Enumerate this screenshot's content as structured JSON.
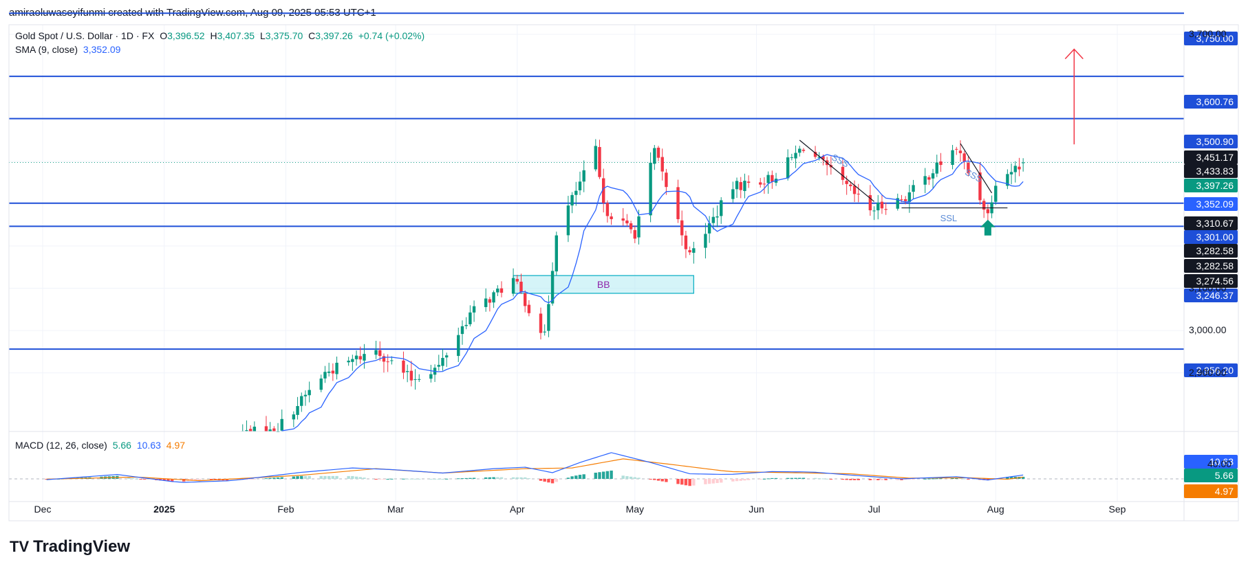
{
  "header": {
    "credit": "amiraoluwaseyifunmi created with TradingView.com, Aug 09, 2025 05:53 UTC+1"
  },
  "legend": {
    "symbol": "Gold Spot / U.S. Dollar · 1D · FX",
    "o_label": "O",
    "o_value": "3,396.52",
    "h_label": "H",
    "h_value": "3,407.35",
    "l_label": "L",
    "l_value": "3,375.70",
    "c_label": "C",
    "c_value": "3,397.26",
    "change": "+0.74 (+0.02%)",
    "sma_label": "SMA (9, close)",
    "sma_value": "3,352.09",
    "macd_label": "MACD (12, 26, close)",
    "macd_v1": "5.66",
    "macd_v2": "10.63",
    "macd_v3": "4.97"
  },
  "colors": {
    "up": "#089981",
    "down": "#f23645",
    "sma": "#2962ff",
    "level": "#1e4fd8",
    "macd": "#2962ff",
    "signal": "#f57c00",
    "hist_up": "#26a69a",
    "hist_up_weak": "#b2dfdb",
    "hist_down": "#ff5252",
    "hist_down_weak": "#ffcdd2",
    "bb_fill": "#b2ebf2",
    "bb_stroke": "#00acc1",
    "annot": "#5b8bd6",
    "arrow_red": "#f23645",
    "arrow_green": "#089981"
  },
  "logo": {
    "text": "TradingView",
    "mark": "TV"
  },
  "chart_data": [
    {
      "type": "candlestick",
      "title": "Gold Spot / U.S. Dollar · 1D · FX",
      "ylim": [
        2830,
        3780
      ],
      "yticks": [
        "3,700.00",
        "3,100.00",
        "3,000.00",
        "2,900.00"
      ],
      "ytick_values": [
        3700,
        3100,
        3000,
        2900
      ],
      "xticks": [
        {
          "label": "Dec",
          "date": "2024-12-01"
        },
        {
          "label": "2025",
          "date": "2025-01-01"
        },
        {
          "label": "Feb",
          "date": "2025-02-01"
        },
        {
          "label": "Mar",
          "date": "2025-03-01"
        },
        {
          "label": "Apr",
          "date": "2025-04-01"
        },
        {
          "label": "May",
          "date": "2025-05-01"
        },
        {
          "label": "Jun",
          "date": "2025-06-01"
        },
        {
          "label": "Jul",
          "date": "2025-07-01"
        },
        {
          "label": "Aug",
          "date": "2025-08-01"
        },
        {
          "label": "Sep",
          "date": "2025-09-01"
        }
      ],
      "levels": [
        {
          "value": 3750.0,
          "label": "3,750.00"
        },
        {
          "value": 3600.76,
          "label": "3,600.76"
        },
        {
          "value": 3500.9,
          "label": "3,500.90"
        },
        {
          "value": 3301.0,
          "label": "3,301.00"
        },
        {
          "value": 3246.37,
          "label": "3,246.37"
        },
        {
          "value": 2956.2,
          "label": "2,956.20"
        }
      ],
      "price_labels": [
        {
          "value": 3451.17,
          "label": "3,451.17",
          "style": "dark"
        },
        {
          "value": 3433.83,
          "label": "3,433.83",
          "style": "dark"
        },
        {
          "value": 3397.26,
          "label": "3,397.26",
          "style": "green"
        },
        {
          "value": 3352.09,
          "label": "3,352.09",
          "style": "blue"
        },
        {
          "value": 3310.67,
          "label": "3,310.67",
          "style": "dark"
        },
        {
          "value": 3282.58,
          "label": "3,282.58",
          "style": "dark"
        },
        {
          "value": 3282.58,
          "label": "3,282.58",
          "style": "dark"
        },
        {
          "value": 3274.56,
          "label": "3,274.56",
          "style": "dark"
        }
      ],
      "anchors": [
        {
          "date": "2025-01-29",
          "close": 2760
        },
        {
          "date": "2025-02-11",
          "close": 2900
        },
        {
          "date": "2025-02-24",
          "close": 2955
        },
        {
          "date": "2025-03-05",
          "close": 2885
        },
        {
          "date": "2025-03-12",
          "close": 2915
        },
        {
          "date": "2025-03-20",
          "close": 3040
        },
        {
          "date": "2025-03-31",
          "close": 3120
        },
        {
          "date": "2025-04-08",
          "close": 2985
        },
        {
          "date": "2025-04-11",
          "close": 3235
        },
        {
          "date": "2025-04-21",
          "close": 3425
        },
        {
          "date": "2025-04-23",
          "close": 3290
        },
        {
          "date": "2025-05-01",
          "close": 3230
        },
        {
          "date": "2025-05-06",
          "close": 3425
        },
        {
          "date": "2025-05-15",
          "close": 3175
        },
        {
          "date": "2025-05-26",
          "close": 3340
        },
        {
          "date": "2025-06-05",
          "close": 3360
        },
        {
          "date": "2025-06-13",
          "close": 3435
        },
        {
          "date": "2025-06-25",
          "close": 3330
        },
        {
          "date": "2025-06-30",
          "close": 3285
        },
        {
          "date": "2025-07-09",
          "close": 3315
        },
        {
          "date": "2025-07-22",
          "close": 3432
        },
        {
          "date": "2025-07-30",
          "close": 3275
        },
        {
          "date": "2025-08-01",
          "close": 3355
        },
        {
          "date": "2025-08-08",
          "close": 3397
        }
      ],
      "last_candle": {
        "date": "2025-08-08",
        "open": 3396.52,
        "high": 3407.35,
        "low": 3375.7,
        "close": 3397.26
      },
      "sma_last": 3352.09,
      "annotations": [
        {
          "type": "zone",
          "text": "BB",
          "start": "2025-03-31",
          "end": "2025-05-16",
          "low": 3088,
          "high": 3130
        },
        {
          "type": "text",
          "text": "SSS",
          "date": "2025-06-22",
          "value": 3395
        },
        {
          "type": "text",
          "text": "SSS",
          "date": "2025-07-26",
          "value": 3360
        },
        {
          "type": "text",
          "text": "SSL",
          "date": "2025-07-20",
          "value": 3258
        },
        {
          "type": "line",
          "from": {
            "date": "2025-06-12",
            "value": 3450
          },
          "to": {
            "date": "2025-07-01",
            "value": 3305
          }
        },
        {
          "type": "line",
          "from": {
            "date": "2025-07-23",
            "value": 3442
          },
          "to": {
            "date": "2025-07-31",
            "value": 3325
          }
        },
        {
          "type": "line",
          "from": {
            "date": "2025-07-08",
            "value": 3290
          },
          "to": {
            "date": "2025-08-04",
            "value": 3290
          }
        },
        {
          "type": "arrow_up",
          "date": "2025-08-21",
          "from": 3440,
          "to": 3665
        },
        {
          "type": "arrow_up_green",
          "date": "2025-07-30",
          "value": 3262
        }
      ]
    },
    {
      "type": "macd",
      "title": "MACD (12, 26, close)",
      "ylim": [
        -40,
        50
      ],
      "yticks": [
        "40.00"
      ],
      "ytick_values": [
        40
      ],
      "last": {
        "macd": 10.63,
        "signal": 4.97,
        "hist": 5.66
      },
      "value_labels": [
        {
          "value": 10.63,
          "label": "10.63",
          "style": "blue"
        },
        {
          "value": 5.66,
          "label": "5.66",
          "style": "green"
        },
        {
          "value": 4.97,
          "label": "4.97",
          "style": "orange"
        }
      ],
      "anchors_macd": [
        {
          "date": "2024-12-01",
          "v": -3
        },
        {
          "date": "2024-12-20",
          "v": 12
        },
        {
          "date": "2025-01-05",
          "v": -10
        },
        {
          "date": "2025-01-18",
          "v": -5
        },
        {
          "date": "2025-02-05",
          "v": 18
        },
        {
          "date": "2025-02-18",
          "v": 30
        },
        {
          "date": "2025-03-01",
          "v": 25
        },
        {
          "date": "2025-03-13",
          "v": 16
        },
        {
          "date": "2025-03-26",
          "v": 28
        },
        {
          "date": "2025-04-03",
          "v": 32
        },
        {
          "date": "2025-04-10",
          "v": 17
        },
        {
          "date": "2025-04-17",
          "v": 45
        },
        {
          "date": "2025-04-25",
          "v": 72
        },
        {
          "date": "2025-05-05",
          "v": 45
        },
        {
          "date": "2025-05-15",
          "v": 14
        },
        {
          "date": "2025-05-25",
          "v": 12
        },
        {
          "date": "2025-06-05",
          "v": 20
        },
        {
          "date": "2025-06-15",
          "v": 19
        },
        {
          "date": "2025-06-28",
          "v": 8
        },
        {
          "date": "2025-07-08",
          "v": 0
        },
        {
          "date": "2025-07-22",
          "v": 6
        },
        {
          "date": "2025-07-30",
          "v": -3
        },
        {
          "date": "2025-08-08",
          "v": 10.63
        }
      ],
      "anchors_signal": [
        {
          "date": "2024-12-01",
          "v": -1
        },
        {
          "date": "2024-12-25",
          "v": 5
        },
        {
          "date": "2025-01-10",
          "v": -5
        },
        {
          "date": "2025-02-05",
          "v": 10
        },
        {
          "date": "2025-02-24",
          "v": 28
        },
        {
          "date": "2025-03-13",
          "v": 16
        },
        {
          "date": "2025-04-03",
          "v": 28
        },
        {
          "date": "2025-04-15",
          "v": 30
        },
        {
          "date": "2025-04-28",
          "v": 55
        },
        {
          "date": "2025-05-10",
          "v": 40
        },
        {
          "date": "2025-05-25",
          "v": 20
        },
        {
          "date": "2025-06-10",
          "v": 17
        },
        {
          "date": "2025-06-25",
          "v": 14
        },
        {
          "date": "2025-07-10",
          "v": 2
        },
        {
          "date": "2025-07-25",
          "v": 3
        },
        {
          "date": "2025-08-04",
          "v": -1
        },
        {
          "date": "2025-08-08",
          "v": 4.97
        }
      ]
    }
  ]
}
